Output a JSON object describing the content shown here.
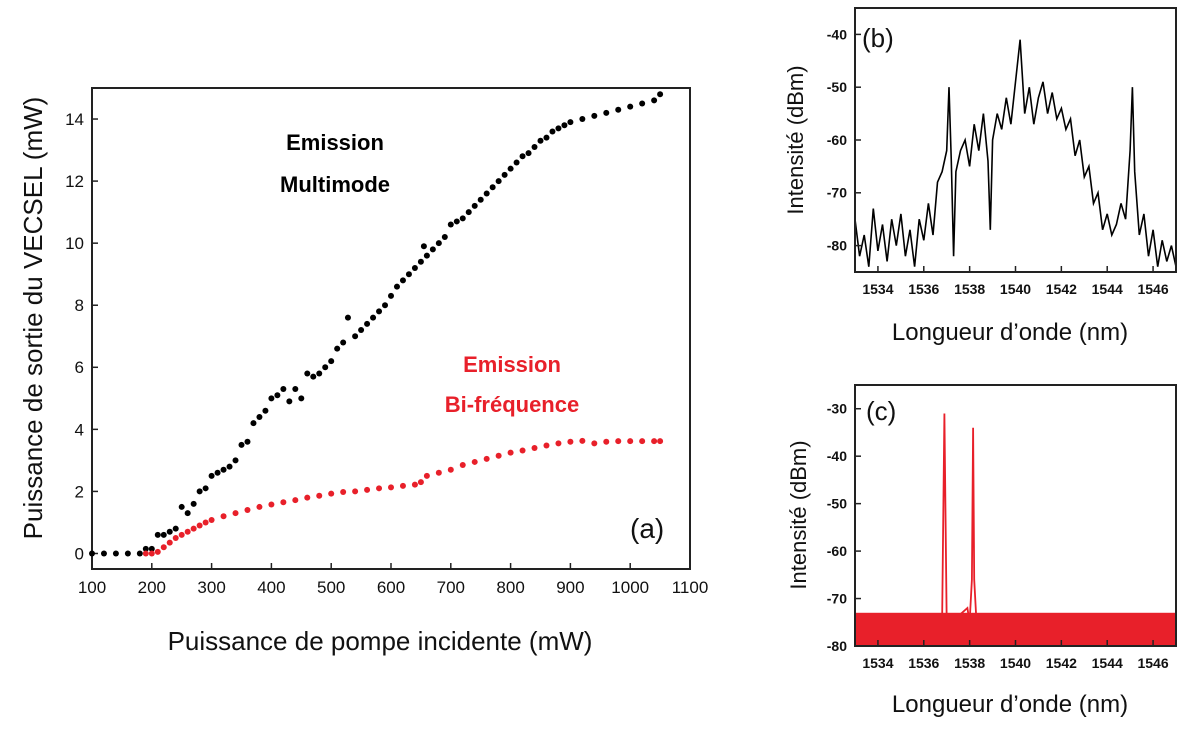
{
  "chart_data": [
    {
      "panel_label": "(a)",
      "type": "scatter",
      "xlabel": "Puissance de pompe incidente (mW)",
      "ylabel": "Puissance de sortie du VECSEL (mW)",
      "xlim": [
        100,
        1100
      ],
      "ylim": [
        -0.5,
        15
      ],
      "xticks": [
        100,
        200,
        300,
        400,
        500,
        600,
        700,
        800,
        900,
        1000,
        1100
      ],
      "yticks": [
        0,
        2,
        4,
        6,
        8,
        10,
        12,
        14
      ],
      "grid": false,
      "annotations": [
        {
          "lines": [
            "Emission",
            "Multimode"
          ],
          "color": "#000000"
        },
        {
          "lines": [
            "Emission",
            "Bi-fréquence"
          ],
          "color": "#e8202a"
        }
      ],
      "series": [
        {
          "color": "#000000",
          "points": [
            [
              100,
              0
            ],
            [
              120,
              0
            ],
            [
              140,
              0
            ],
            [
              160,
              0
            ],
            [
              180,
              0
            ],
            [
              190,
              0.15
            ],
            [
              200,
              0.15
            ],
            [
              210,
              0.6
            ],
            [
              220,
              0.6
            ],
            [
              230,
              0.7
            ],
            [
              240,
              0.8
            ],
            [
              250,
              1.5
            ],
            [
              260,
              1.3
            ],
            [
              270,
              1.6
            ],
            [
              280,
              2.0
            ],
            [
              290,
              2.1
            ],
            [
              300,
              2.5
            ],
            [
              310,
              2.6
            ],
            [
              320,
              2.7
            ],
            [
              330,
              2.8
            ],
            [
              340,
              3.0
            ],
            [
              350,
              3.5
            ],
            [
              360,
              3.6
            ],
            [
              370,
              4.2
            ],
            [
              380,
              4.4
            ],
            [
              390,
              4.6
            ],
            [
              400,
              5.0
            ],
            [
              410,
              5.1
            ],
            [
              420,
              5.3
            ],
            [
              430,
              4.9
            ],
            [
              440,
              5.3
            ],
            [
              450,
              5.0
            ],
            [
              460,
              5.8
            ],
            [
              470,
              5.7
            ],
            [
              480,
              5.8
            ],
            [
              490,
              6.0
            ],
            [
              500,
              6.2
            ],
            [
              510,
              6.6
            ],
            [
              520,
              6.8
            ],
            [
              528,
              7.6
            ],
            [
              540,
              7.0
            ],
            [
              550,
              7.2
            ],
            [
              560,
              7.4
            ],
            [
              570,
              7.6
            ],
            [
              580,
              7.8
            ],
            [
              590,
              8.0
            ],
            [
              600,
              8.3
            ],
            [
              610,
              8.6
            ],
            [
              620,
              8.8
            ],
            [
              630,
              9.0
            ],
            [
              640,
              9.2
            ],
            [
              650,
              9.4
            ],
            [
              655,
              9.9
            ],
            [
              660,
              9.6
            ],
            [
              670,
              9.8
            ],
            [
              680,
              10.0
            ],
            [
              690,
              10.2
            ],
            [
              700,
              10.6
            ],
            [
              710,
              10.7
            ],
            [
              720,
              10.8
            ],
            [
              730,
              11.0
            ],
            [
              740,
              11.2
            ],
            [
              750,
              11.4
            ],
            [
              760,
              11.6
            ],
            [
              770,
              11.8
            ],
            [
              780,
              12.0
            ],
            [
              790,
              12.2
            ],
            [
              800,
              12.4
            ],
            [
              810,
              12.6
            ],
            [
              820,
              12.8
            ],
            [
              830,
              12.9
            ],
            [
              840,
              13.1
            ],
            [
              850,
              13.3
            ],
            [
              860,
              13.4
            ],
            [
              870,
              13.6
            ],
            [
              880,
              13.7
            ],
            [
              890,
              13.8
            ],
            [
              900,
              13.9
            ],
            [
              920,
              14.0
            ],
            [
              940,
              14.1
            ],
            [
              960,
              14.2
            ],
            [
              980,
              14.3
            ],
            [
              1000,
              14.4
            ],
            [
              1020,
              14.5
            ],
            [
              1040,
              14.6
            ],
            [
              1050,
              14.8
            ]
          ]
        },
        {
          "color": "#e8202a",
          "points": [
            [
              190,
              0
            ],
            [
              200,
              0
            ],
            [
              210,
              0.05
            ],
            [
              220,
              0.2
            ],
            [
              230,
              0.35
            ],
            [
              240,
              0.5
            ],
            [
              250,
              0.6
            ],
            [
              260,
              0.7
            ],
            [
              270,
              0.8
            ],
            [
              280,
              0.9
            ],
            [
              290,
              1.0
            ],
            [
              300,
              1.08
            ],
            [
              320,
              1.2
            ],
            [
              340,
              1.3
            ],
            [
              360,
              1.4
            ],
            [
              380,
              1.5
            ],
            [
              400,
              1.58
            ],
            [
              420,
              1.65
            ],
            [
              440,
              1.72
            ],
            [
              460,
              1.8
            ],
            [
              480,
              1.86
            ],
            [
              500,
              1.93
            ],
            [
              520,
              1.98
            ],
            [
              540,
              2.0
            ],
            [
              560,
              2.05
            ],
            [
              580,
              2.1
            ],
            [
              600,
              2.13
            ],
            [
              620,
              2.18
            ],
            [
              640,
              2.22
            ],
            [
              650,
              2.3
            ],
            [
              660,
              2.5
            ],
            [
              680,
              2.6
            ],
            [
              700,
              2.7
            ],
            [
              720,
              2.85
            ],
            [
              740,
              2.95
            ],
            [
              760,
              3.05
            ],
            [
              780,
              3.15
            ],
            [
              800,
              3.25
            ],
            [
              820,
              3.32
            ],
            [
              840,
              3.4
            ],
            [
              860,
              3.48
            ],
            [
              880,
              3.55
            ],
            [
              900,
              3.6
            ],
            [
              920,
              3.63
            ],
            [
              940,
              3.55
            ],
            [
              960,
              3.6
            ],
            [
              980,
              3.62
            ],
            [
              1000,
              3.62
            ],
            [
              1020,
              3.62
            ],
            [
              1040,
              3.62
            ],
            [
              1050,
              3.62
            ]
          ]
        }
      ]
    },
    {
      "panel_label": "(b)",
      "type": "line",
      "xlabel": "Longueur d’onde (nm)",
      "ylabel": "Intensité (dBm)",
      "xlim": [
        1533,
        1547
      ],
      "ylim": [
        -85,
        -35
      ],
      "xticks": [
        1534,
        1536,
        1538,
        1540,
        1542,
        1544,
        1546
      ],
      "yticks": [
        -40,
        -50,
        -60,
        -70,
        -80
      ],
      "grid": false,
      "series": [
        {
          "color": "#000000",
          "points": [
            [
              1533.0,
              -75
            ],
            [
              1533.2,
              -82
            ],
            [
              1533.4,
              -78
            ],
            [
              1533.6,
              -84
            ],
            [
              1533.8,
              -73
            ],
            [
              1534.0,
              -81
            ],
            [
              1534.2,
              -76
            ],
            [
              1534.4,
              -83
            ],
            [
              1534.6,
              -75
            ],
            [
              1534.8,
              -80
            ],
            [
              1535.0,
              -74
            ],
            [
              1535.2,
              -82
            ],
            [
              1535.4,
              -77
            ],
            [
              1535.6,
              -84
            ],
            [
              1535.8,
              -75
            ],
            [
              1536.0,
              -79
            ],
            [
              1536.2,
              -72
            ],
            [
              1536.4,
              -78
            ],
            [
              1536.6,
              -68
            ],
            [
              1536.8,
              -66
            ],
            [
              1537.0,
              -62
            ],
            [
              1537.1,
              -50
            ],
            [
              1537.2,
              -64
            ],
            [
              1537.3,
              -82
            ],
            [
              1537.4,
              -66
            ],
            [
              1537.6,
              -62
            ],
            [
              1537.8,
              -60
            ],
            [
              1538.0,
              -65
            ],
            [
              1538.2,
              -57
            ],
            [
              1538.4,
              -62
            ],
            [
              1538.6,
              -55
            ],
            [
              1538.8,
              -64
            ],
            [
              1538.9,
              -77
            ],
            [
              1539.0,
              -60
            ],
            [
              1539.2,
              -55
            ],
            [
              1539.4,
              -58
            ],
            [
              1539.6,
              -52
            ],
            [
              1539.8,
              -57
            ],
            [
              1540.0,
              -49
            ],
            [
              1540.2,
              -41
            ],
            [
              1540.4,
              -55
            ],
            [
              1540.6,
              -50
            ],
            [
              1540.8,
              -57
            ],
            [
              1541.0,
              -52
            ],
            [
              1541.2,
              -49
            ],
            [
              1541.4,
              -55
            ],
            [
              1541.6,
              -51
            ],
            [
              1541.8,
              -56
            ],
            [
              1542.0,
              -54
            ],
            [
              1542.2,
              -58
            ],
            [
              1542.4,
              -56
            ],
            [
              1542.6,
              -63
            ],
            [
              1542.8,
              -60
            ],
            [
              1543.0,
              -67
            ],
            [
              1543.2,
              -65
            ],
            [
              1543.4,
              -72
            ],
            [
              1543.6,
              -70
            ],
            [
              1543.8,
              -77
            ],
            [
              1544.0,
              -74
            ],
            [
              1544.2,
              -78
            ],
            [
              1544.4,
              -76
            ],
            [
              1544.6,
              -72
            ],
            [
              1544.8,
              -75
            ],
            [
              1545.0,
              -62
            ],
            [
              1545.1,
              -50
            ],
            [
              1545.2,
              -66
            ],
            [
              1545.4,
              -78
            ],
            [
              1545.6,
              -74
            ],
            [
              1545.8,
              -82
            ],
            [
              1546.0,
              -77
            ],
            [
              1546.2,
              -84
            ],
            [
              1546.4,
              -79
            ],
            [
              1546.6,
              -83
            ],
            [
              1546.8,
              -80
            ],
            [
              1547.0,
              -84
            ]
          ]
        }
      ]
    },
    {
      "panel_label": "(c)",
      "type": "line",
      "xlabel": "Longueur d’onde (nm)",
      "ylabel": "Intensité (dBm)",
      "xlim": [
        1533,
        1547
      ],
      "ylim": [
        -80,
        -25
      ],
      "xticks": [
        1534,
        1536,
        1538,
        1540,
        1542,
        1544,
        1546
      ],
      "yticks": [
        -30,
        -40,
        -50,
        -60,
        -70,
        -80
      ],
      "grid": false,
      "noise_floor": [
        -80,
        -73
      ],
      "series": [
        {
          "color": "#e8202a",
          "points": [
            [
              1533.0,
              -75
            ],
            [
              1536.8,
              -75
            ],
            [
              1536.9,
              -31
            ],
            [
              1537.0,
              -75
            ],
            [
              1537.2,
              -75
            ],
            [
              1537.9,
              -72
            ],
            [
              1538.0,
              -75
            ],
            [
              1538.1,
              -66
            ],
            [
              1538.15,
              -34
            ],
            [
              1538.2,
              -66
            ],
            [
              1538.3,
              -75
            ],
            [
              1547.0,
              -75
            ]
          ]
        }
      ]
    }
  ]
}
